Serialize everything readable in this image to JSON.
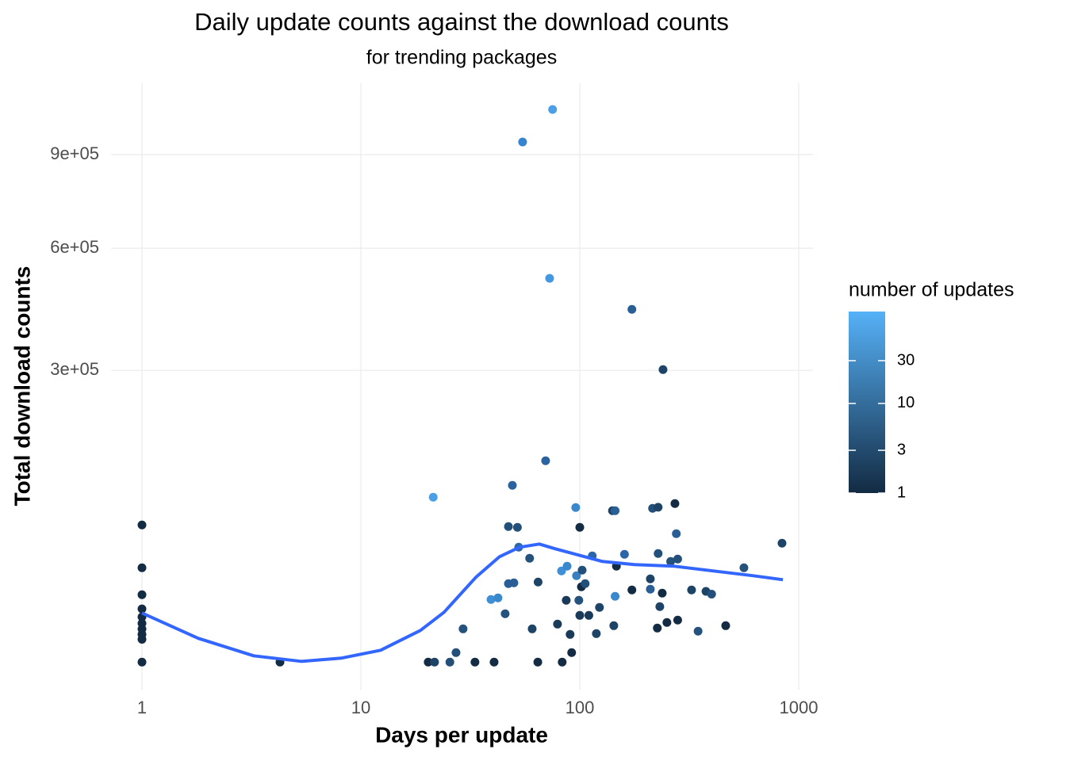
{
  "chart_data": {
    "type": "scatter",
    "title": "Daily update counts against the download counts",
    "subtitle": "for trending packages",
    "x_label": "Days per update",
    "y_label": "Total download counts",
    "xscale": "log",
    "yscale": "sqrt",
    "xlim": [
      1,
      1000
    ],
    "ylim": [
      0,
      1100000
    ],
    "xticks": [
      1,
      10,
      100,
      1000
    ],
    "yticks": [
      {
        "value": 300000,
        "label": "3e+05"
      },
      {
        "value": 600000,
        "label": "6e+05"
      },
      {
        "value": 900000,
        "label": "9e+05"
      }
    ],
    "grid": true,
    "points": {
      "x": [
        1,
        1,
        1,
        1,
        1,
        1,
        1,
        1,
        1,
        1,
        4.27,
        20.3,
        21.7,
        25.5,
        27.2,
        29.3,
        33.2,
        40.6,
        21.4,
        39.3,
        42.3,
        45.6,
        47.2,
        49.2,
        47.2,
        50,
        51.9,
        52.6,
        54.8,
        64.3,
        60.6,
        59,
        64.5,
        69.8,
        72.8,
        75.1,
        79.1,
        82.5,
        87.5,
        86.7,
        83.1,
        91.8,
        90.3,
        95.8,
        96.6,
        100,
        100,
        99,
        101.7,
        102.5,
        105.8,
        110,
        114,
        119,
        123,
        141,
        145,
        143,
        145,
        147,
        160,
        173,
        173,
        210,
        215,
        228,
        228,
        210,
        238,
        232,
        226,
        240,
        250,
        260,
        272,
        276,
        280,
        280,
        324,
        347,
        377,
        400,
        464,
        562,
        839
      ],
      "values": [
        67800,
        32700,
        17100,
        10900,
        8000,
        6000,
        4500,
        3250,
        2300,
        30,
        30,
        30,
        30,
        30,
        535,
        4530,
        30,
        30,
        97300,
        14850,
        15570,
        9090,
        66260,
        111560,
        22900,
        23350,
        65490,
        48000,
        944800,
        30,
        4530,
        39400,
        23800,
        144200,
        516400,
        1065900,
        5800,
        30600,
        33760,
        14490,
        30,
        535,
        3250,
        85700,
        27570,
        65490,
        8530,
        14490,
        21150,
        31100,
        22900,
        8530,
        41150,
        3420,
        11470,
        82300,
        82300,
        5360,
        16320,
        33760,
        42370,
        19470,
        437000,
        25650,
        84850,
        86040,
        42970,
        19880,
        17860,
        11790,
        4730,
        301500,
        6260,
        37080,
        90080,
        59600,
        38800,
        6980,
        19470,
        3960,
        18760,
        17400,
        5360,
        32700,
        51300
      ],
      "colors": [
        "#132B43",
        "#132B43",
        "#132B43",
        "#132B43",
        "#132B43",
        "#132B43",
        "#132B43",
        "#132B43",
        "#132B43",
        "#132B43",
        "#132B43",
        "#132B43",
        "#1d4466",
        "#234f78",
        "#234f78",
        "#25527d",
        "#132B43",
        "#132B43",
        "#4a9fe6",
        "#3e8fd6",
        "#3a88cc",
        "#25527d",
        "#23507a",
        "#2b62a0",
        "#2a5f95",
        "#2a5f95",
        "#23507a",
        "#2d66a8",
        "#3683cf",
        "#132B43",
        "#1d4466",
        "#25527d",
        "#1d4466",
        "#2b62a0",
        "#4497e0",
        "#4a9fe8",
        "#1a3a5a",
        "#3e8fd6",
        "#3a88cc",
        "#1a3a5a",
        "#132B43",
        "#132B43",
        "#1a3a5a",
        "#3a88cc",
        "#3a80c0",
        "#132B43",
        "#1a3a5a",
        "#25527d",
        "#132B43",
        "#23507a",
        "#23507a",
        "#1a3a5a",
        "#2d66a8",
        "#1d4466",
        "#1d4466",
        "#1d4466",
        "#2a5f95",
        "#1d4466",
        "#3a88cc",
        "#132B43",
        "#2d66a8",
        "#132B43",
        "#2a5f95",
        "#1d4466",
        "#23507a",
        "#1d4466",
        "#23507a",
        "#2a5f95",
        "#132B43",
        "#1d4466",
        "#132B43",
        "#1d4466",
        "#132B43",
        "#25527d",
        "#132B43",
        "#2a5f95",
        "#23507a",
        "#132B43",
        "#1d4466",
        "#25527d",
        "#1d4466",
        "#23507a",
        "#132B43",
        "#25527d",
        "#1d4466"
      ]
    },
    "trend": {
      "color": "#3366FF",
      "x": [
        1,
        1.81,
        3.24,
        5.35,
        8.11,
        12.3,
        18.7,
        24,
        33.5,
        43,
        53.1,
        65.3,
        77.3,
        99,
        127,
        178,
        270,
        409,
        621,
        847
      ],
      "values": [
        9370,
        2467,
        297,
        48,
        164,
        760,
        4146,
        9660,
        26600,
        40570,
        48000,
        50620,
        46710,
        41770,
        37080,
        34850,
        33760,
        30590,
        27570,
        25180
      ]
    },
    "legend": {
      "title": "number of updates",
      "ticks": [
        1,
        3,
        10,
        30
      ],
      "lim": [
        1,
        106
      ],
      "scale": "log",
      "low": "#132B43",
      "high": "#56B1F7"
    }
  }
}
